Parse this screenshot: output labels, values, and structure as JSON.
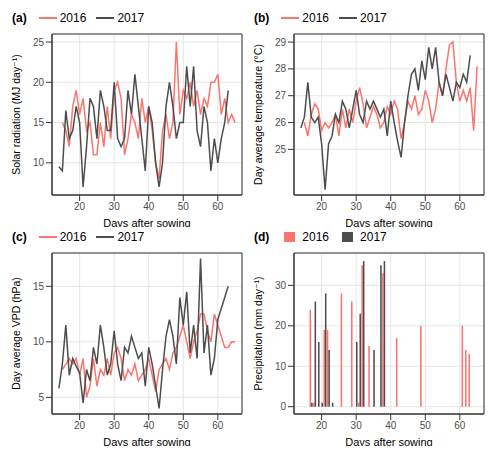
{
  "chart_data": [
    {
      "type": "line",
      "title": "(a)",
      "xlabel": "Days after sowing",
      "ylabel": "Solar radiation (MJ day⁻¹)",
      "x": [
        14,
        15,
        16,
        17,
        18,
        19,
        20,
        21,
        22,
        23,
        24,
        25,
        26,
        27,
        28,
        29,
        30,
        31,
        32,
        33,
        34,
        35,
        36,
        37,
        38,
        39,
        40,
        41,
        42,
        43,
        44,
        45,
        46,
        47,
        48,
        49,
        50,
        51,
        52,
        53,
        54,
        55,
        56,
        57,
        58,
        59,
        60,
        61,
        62,
        63,
        64,
        65
      ],
      "series": [
        {
          "name": "2016",
          "color": "#F8766D",
          "values": [
            null,
            15,
            14,
            12,
            17,
            19,
            16,
            18,
            14,
            15,
            11,
            11,
            15,
            12,
            17,
            13,
            19,
            20,
            18,
            11,
            13,
            16,
            15,
            13,
            18,
            15,
            17,
            14,
            10,
            8,
            14,
            16,
            13,
            15,
            25,
            16,
            19,
            18,
            20,
            17,
            19,
            16,
            18,
            17,
            20,
            20,
            21,
            16,
            18,
            15,
            16,
            15
          ]
        },
        {
          "name": "2017",
          "color": "#4D4D4D",
          "values": [
            9.5,
            9,
            16.5,
            13,
            14,
            17,
            15,
            7,
            12,
            18,
            17,
            13,
            19,
            17,
            14,
            14,
            20,
            13,
            12,
            13,
            19,
            16,
            21,
            17,
            13,
            9,
            17,
            15,
            10,
            7,
            10,
            17,
            20,
            17,
            13,
            15,
            15,
            22,
            17,
            22,
            14,
            12,
            17,
            15,
            9,
            13,
            10,
            13,
            15,
            19,
            null,
            null
          ]
        }
      ],
      "xlim": [
        12,
        67
      ],
      "xticks": [
        20,
        30,
        40,
        50,
        60
      ],
      "ylim": [
        6,
        26
      ],
      "yticks": [
        10,
        15,
        20,
        25
      ],
      "grid": true,
      "legend": "top"
    },
    {
      "type": "line",
      "title": "(b)",
      "xlabel": "Days after sowing",
      "ylabel": "Day average temperature (°C)",
      "x": [
        14,
        15,
        16,
        17,
        18,
        19,
        20,
        21,
        22,
        23,
        24,
        25,
        26,
        27,
        28,
        29,
        30,
        31,
        32,
        33,
        34,
        35,
        36,
        37,
        38,
        39,
        40,
        41,
        42,
        43,
        44,
        45,
        46,
        47,
        48,
        49,
        50,
        51,
        52,
        53,
        54,
        55,
        56,
        57,
        58,
        59,
        60,
        61,
        62,
        63,
        64,
        65
      ],
      "series": [
        {
          "name": "2016",
          "color": "#F8766D",
          "values": [
            null,
            26.0,
            25.5,
            26.3,
            26.7,
            26.5,
            25.7,
            26.0,
            25.8,
            26.0,
            26.3,
            25.5,
            26.5,
            25.8,
            26.5,
            26.0,
            26.8,
            27.3,
            26.7,
            25.8,
            26.2,
            26.6,
            26.3,
            25.8,
            26.0,
            26.6,
            26.3,
            26.8,
            26.5,
            25.4,
            26.0,
            26.8,
            26.5,
            27.0,
            26.3,
            26.5,
            27.2,
            26.8,
            26.0,
            26.5,
            27.5,
            27.0,
            28.0,
            28.9,
            29.0,
            27.5,
            26.8,
            27.2,
            26.8,
            27.3,
            25.7,
            28.1
          ]
        },
        {
          "name": "2017",
          "color": "#4D4D4D",
          "values": [
            25.8,
            26.2,
            27.5,
            26.2,
            26.0,
            26.2,
            25.2,
            23.5,
            25.2,
            25.5,
            26.3,
            26.0,
            26.8,
            26.5,
            25.8,
            26.5,
            27.2,
            26.3,
            26.0,
            26.8,
            26.5,
            26.8,
            26.5,
            26.2,
            26.5,
            25.5,
            26.8,
            26.0,
            25.3,
            24.7,
            26.0,
            27.0,
            27.8,
            28.0,
            27.2,
            28.3,
            27.6,
            28.8,
            28.0,
            28.8,
            27.5,
            27.0,
            27.8,
            27.3,
            26.8,
            27.5,
            27.3,
            27.8,
            27.5,
            28.5,
            null,
            null
          ]
        }
      ],
      "xlim": [
        12,
        67
      ],
      "xticks": [
        20,
        30,
        40,
        50,
        60
      ],
      "ylim": [
        23.3,
        29.3
      ],
      "yticks": [
        25,
        26,
        27,
        28,
        29
      ],
      "grid": true,
      "legend": "top"
    },
    {
      "type": "line",
      "title": "(c)",
      "xlabel": "Days after sowing",
      "ylabel": "Day average VPD (hPa)",
      "x": [
        14,
        15,
        16,
        17,
        18,
        19,
        20,
        21,
        22,
        23,
        24,
        25,
        26,
        27,
        28,
        29,
        30,
        31,
        32,
        33,
        34,
        35,
        36,
        37,
        38,
        39,
        40,
        41,
        42,
        43,
        44,
        45,
        46,
        47,
        48,
        49,
        50,
        51,
        52,
        53,
        54,
        55,
        56,
        57,
        58,
        59,
        60,
        61,
        62,
        63,
        64,
        65
      ],
      "series": [
        {
          "name": "2016",
          "color": "#F8766D",
          "values": [
            null,
            7.5,
            8.0,
            8.5,
            8.0,
            8.5,
            7.0,
            8.5,
            5.0,
            6.0,
            8.5,
            6.0,
            7.5,
            7.0,
            8.5,
            7.0,
            9.0,
            9.5,
            8.5,
            6.5,
            7.5,
            7.0,
            8.0,
            6.5,
            7.0,
            7.5,
            8.5,
            7.0,
            5.5,
            7.5,
            8.0,
            8.5,
            7.5,
            9.0,
            9.5,
            10.5,
            11.5,
            10.0,
            8.5,
            10.0,
            11.0,
            12.5,
            12.5,
            11.0,
            10.0,
            12.5,
            11.5,
            10.5,
            9.5,
            9.5,
            10.0,
            10.0
          ]
        },
        {
          "name": "2017",
          "color": "#4D4D4D",
          "values": [
            5.8,
            8.0,
            11.5,
            7.0,
            8.5,
            7.8,
            7.2,
            4.5,
            7.5,
            6.5,
            9.5,
            8.0,
            11.5,
            9.5,
            7.0,
            8.0,
            11.0,
            8.0,
            6.5,
            9.5,
            9.0,
            10.5,
            9.5,
            8.5,
            9.0,
            6.0,
            9.5,
            8.0,
            6.0,
            4.0,
            7.5,
            10.5,
            12.0,
            10.5,
            8.0,
            14.0,
            11.5,
            14.5,
            9.0,
            11.5,
            8.5,
            17.5,
            9.0,
            11.5,
            7.0,
            8.5,
            12.0,
            13.0,
            14.0,
            15.0,
            null,
            null
          ]
        }
      ],
      "xlim": [
        12,
        67
      ],
      "xticks": [
        20,
        30,
        40,
        50,
        60
      ],
      "ylim": [
        3.5,
        18
      ],
      "yticks": [
        5,
        10,
        15
      ],
      "grid": true,
      "legend": "top"
    },
    {
      "type": "bar",
      "title": "(d)",
      "xlabel": "Days after sowing",
      "ylabel": "Precipitation (mm day⁻¹)",
      "x": [
        17,
        18,
        19,
        20,
        21,
        22,
        23,
        26,
        29,
        30,
        31,
        32,
        34,
        35,
        37,
        38,
        42,
        49,
        61,
        62,
        63
      ],
      "series": [
        {
          "name": "2016",
          "color": "#F8766D",
          "values": [
            24,
            1,
            null,
            null,
            19,
            19,
            null,
            28,
            26,
            null,
            1,
            35,
            15,
            null,
            null,
            33,
            17,
            20,
            20,
            14,
            13
          ]
        },
        {
          "name": "2017",
          "color": "#4D4D4D",
          "values": [
            1,
            26,
            16,
            1,
            28,
            14,
            1,
            null,
            null,
            16,
            23,
            36,
            null,
            14,
            35,
            36,
            null,
            null,
            null,
            null,
            null
          ]
        }
      ],
      "xlim": [
        12,
        67
      ],
      "xticks": [
        20,
        30,
        40,
        50,
        60
      ],
      "ylim": [
        -1.8,
        38
      ],
      "yticks": [
        0,
        10,
        20,
        30
      ],
      "grid": true,
      "legend": "top"
    }
  ]
}
